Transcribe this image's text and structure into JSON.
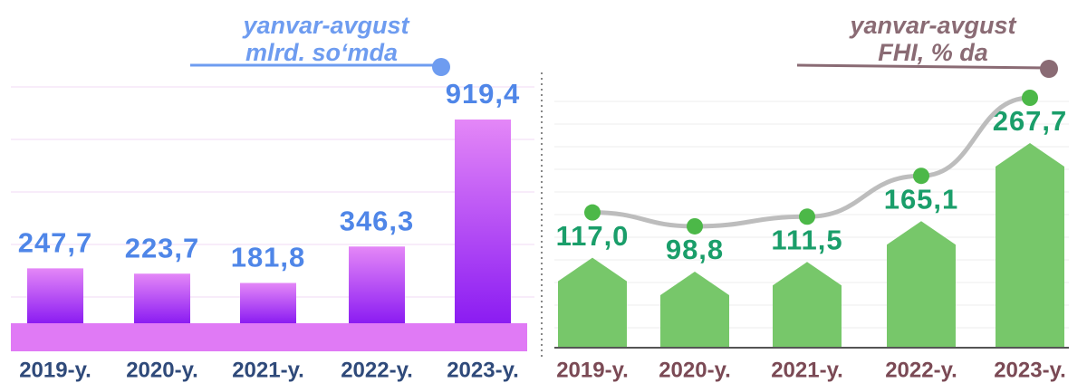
{
  "chart_data": [
    {
      "type": "bar",
      "title": "yanvar-avgust",
      "subtitle": "mlrd. so‘mda",
      "categories": [
        "2019-y.",
        "2020-y.",
        "2021-y.",
        "2022-y.",
        "2023-y."
      ],
      "values": [
        247.7,
        223.7,
        181.8,
        346.3,
        919.4
      ],
      "value_labels": [
        "247,7",
        "223,7",
        "181,8",
        "346,3",
        "919,4"
      ],
      "color": "#b04cf5"
    },
    {
      "type": "house",
      "title": "yanvar-avgust",
      "subtitle": "FHI, % da",
      "categories": [
        "2019-y.",
        "2020-y.",
        "2021-y.",
        "2022-y.",
        "2023-y."
      ],
      "values": [
        117.0,
        98.8,
        111.5,
        165.1,
        267.7
      ],
      "value_labels": [
        "117,0",
        "98,8",
        "111,5",
        "165,1",
        "267,7"
      ],
      "color": "#77c76a"
    }
  ]
}
